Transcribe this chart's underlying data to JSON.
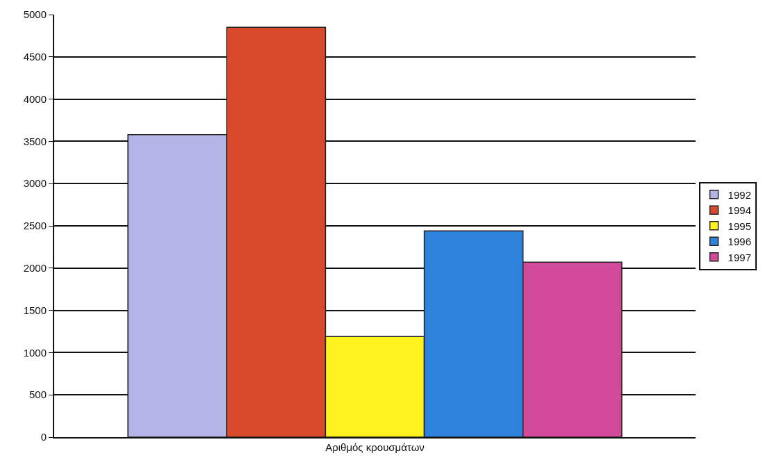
{
  "chart_data": {
    "type": "bar",
    "categories": [
      "Αριθμός κρουσμάτων"
    ],
    "series": [
      {
        "name": "1992",
        "color": "#b4b4e6",
        "values": [
          3580
        ]
      },
      {
        "name": "1994",
        "color": "#d94a2c",
        "values": [
          4850
        ]
      },
      {
        "name": "1995",
        "color": "#fff21e",
        "values": [
          1190
        ]
      },
      {
        "name": "1996",
        "color": "#2f82dc",
        "values": [
          2440
        ]
      },
      {
        "name": "1997",
        "color": "#d24a9a",
        "values": [
          2070
        ]
      }
    ],
    "ylim": [
      0,
      5000
    ],
    "yticks": [
      0,
      500,
      1000,
      1500,
      2000,
      2500,
      3000,
      3500,
      4000,
      4500,
      5000
    ],
    "grid": "y",
    "legend": "right"
  }
}
